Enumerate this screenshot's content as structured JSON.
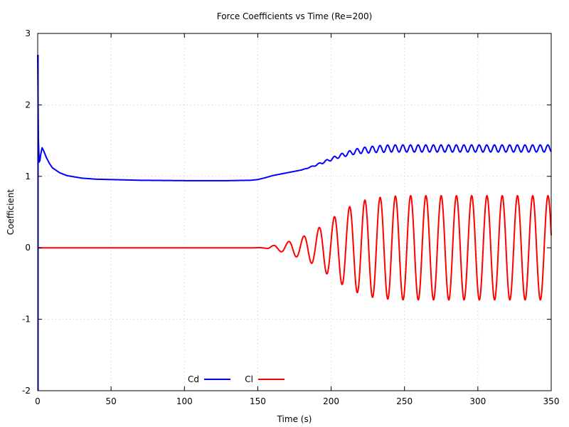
{
  "chart_data": {
    "type": "line",
    "title": "Force Coefficients vs Time (Re=200)",
    "xlabel": "Time (s)",
    "ylabel": "Coefficient",
    "xlim": [
      0,
      350
    ],
    "ylim": [
      -2,
      3
    ],
    "xticks": [
      "0",
      "50",
      "100",
      "150",
      "200",
      "250",
      "300",
      "350"
    ],
    "yticks": [
      "-2",
      "-1",
      "0",
      "1",
      "2",
      "3"
    ],
    "grid": true,
    "legend_position": "bottom-center",
    "series": [
      {
        "name": "Cd",
        "color": "#0000ff",
        "points": [
          [
            0,
            2.7
          ],
          [
            0.5,
            1.5
          ],
          [
            1,
            1.2
          ],
          [
            1.5,
            1.22
          ],
          [
            2,
            1.3
          ],
          [
            3,
            1.4
          ],
          [
            4,
            1.36
          ],
          [
            6,
            1.26
          ],
          [
            8,
            1.18
          ],
          [
            10,
            1.12
          ],
          [
            15,
            1.05
          ],
          [
            20,
            1.01
          ],
          [
            30,
            0.975
          ],
          [
            40,
            0.96
          ],
          [
            50,
            0.955
          ],
          [
            70,
            0.945
          ],
          [
            100,
            0.94
          ],
          [
            130,
            0.94
          ],
          [
            145,
            0.945
          ],
          [
            150,
            0.955
          ],
          [
            155,
            0.98
          ],
          [
            160,
            1.01
          ],
          [
            170,
            1.05
          ],
          [
            180,
            1.09
          ],
          [
            186,
            1.13
          ],
          [
            190,
            1.16
          ],
          [
            195,
            1.2
          ],
          [
            200,
            1.24
          ],
          [
            205,
            1.28
          ],
          [
            210,
            1.31
          ],
          [
            215,
            1.34
          ],
          [
            220,
            1.36
          ],
          [
            225,
            1.37
          ],
          [
            230,
            1.38
          ],
          [
            240,
            1.39
          ],
          [
            250,
            1.39
          ],
          [
            300,
            1.39
          ],
          [
            350,
            1.39
          ]
        ],
        "oscillation": {
          "start": 180,
          "period": 5.2,
          "amplitude": [
            [
              180,
              0
            ],
            [
              190,
              0.01
            ],
            [
              200,
              0.02
            ],
            [
              210,
              0.03
            ],
            [
              220,
              0.04
            ],
            [
              235,
              0.05
            ],
            [
              250,
              0.05
            ],
            [
              350,
              0.05
            ]
          ]
        }
      },
      {
        "name": "Cl",
        "color": "#ff0000",
        "points": [
          [
            0,
            0
          ],
          [
            150,
            0
          ],
          [
            350,
            0
          ]
        ],
        "oscillation": {
          "start": 145,
          "period": 10.4,
          "phase": -1.5708,
          "amplitude": [
            [
              145,
              0
            ],
            [
              155,
              0.005
            ],
            [
              160,
              0.03
            ],
            [
              165,
              0.05
            ],
            [
              170,
              0.08
            ],
            [
              175,
              0.12
            ],
            [
              180,
              0.15
            ],
            [
              185,
              0.2
            ],
            [
              190,
              0.25
            ],
            [
              195,
              0.34
            ],
            [
              200,
              0.4
            ],
            [
              205,
              0.48
            ],
            [
              210,
              0.55
            ],
            [
              215,
              0.6
            ],
            [
              220,
              0.65
            ],
            [
              225,
              0.68
            ],
            [
              230,
              0.7
            ],
            [
              240,
              0.72
            ],
            [
              250,
              0.73
            ],
            [
              350,
              0.73
            ]
          ]
        }
      }
    ]
  }
}
